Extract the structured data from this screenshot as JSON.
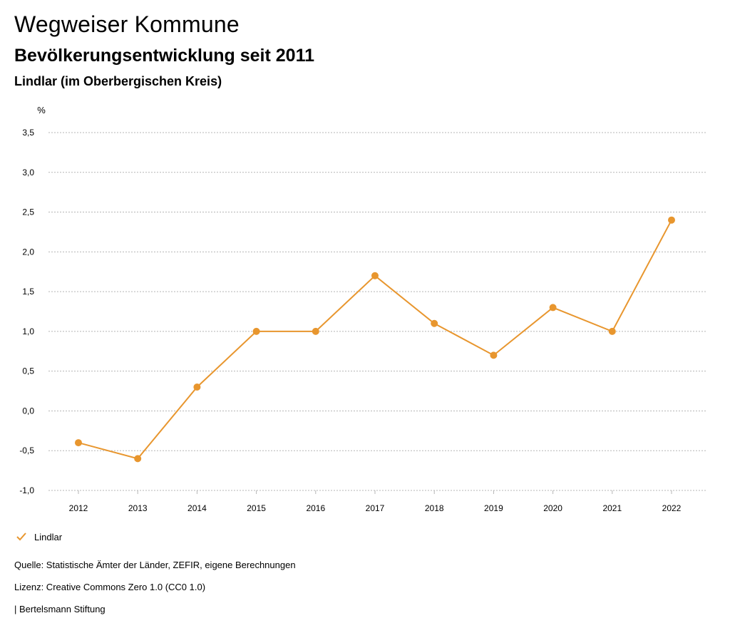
{
  "header": {
    "title": "Wegweiser Kommune",
    "subtitle": "Bevölkerungsentwicklung seit 2011",
    "region": "Lindlar (im Oberbergischen Kreis)"
  },
  "chart_data": {
    "type": "line",
    "unit_label": "%",
    "categories": [
      "2012",
      "2013",
      "2014",
      "2015",
      "2016",
      "2017",
      "2018",
      "2019",
      "2020",
      "2021",
      "2022"
    ],
    "series": [
      {
        "name": "Lindlar",
        "color": "#E8962E",
        "values": [
          -0.4,
          -0.6,
          0.3,
          1.0,
          1.0,
          1.7,
          1.1,
          0.7,
          1.3,
          1.0,
          2.4
        ]
      }
    ],
    "ylim": [
      -1.0,
      3.5
    ],
    "yticks": [
      3.5,
      3.0,
      2.5,
      2.0,
      1.5,
      1.0,
      0.5,
      0.0,
      -0.5,
      -1.0
    ],
    "ytick_labels": [
      "3,5",
      "3,0",
      "2,5",
      "2,0",
      "1,5",
      "1,0",
      "0,5",
      "0,0",
      "-0,5",
      "-1,0"
    ],
    "grid": true,
    "legend_position": "bottom-left"
  },
  "legend": {
    "label": "Lindlar",
    "color": "#E8962E"
  },
  "footer": {
    "source": "Quelle: Statistische Ämter der Länder, ZEFIR, eigene Berechnungen",
    "license": "Lizenz: Creative Commons Zero 1.0 (CC0 1.0)",
    "brand": "| Bertelsmann Stiftung"
  }
}
